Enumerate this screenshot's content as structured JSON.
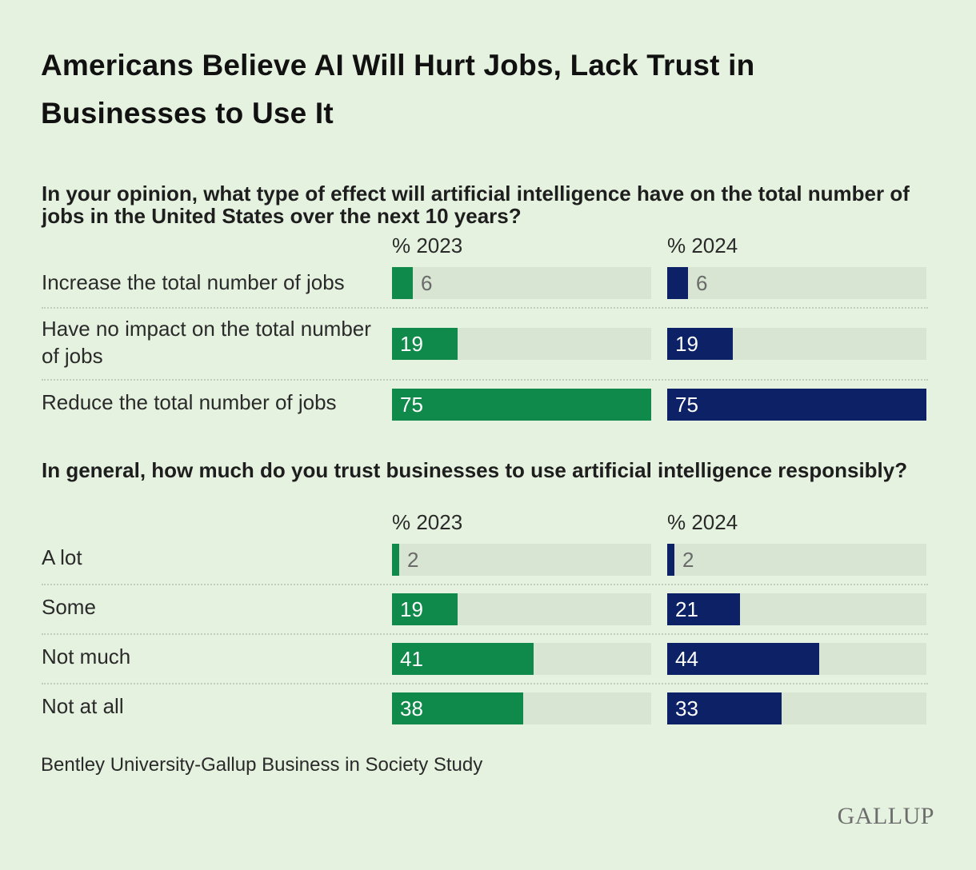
{
  "title": "Americans Believe AI Will Hurt Jobs, Lack Trust in Businesses to Use It",
  "source": "Bentley University-Gallup Business in Society Study",
  "logo_text": "GALLUP",
  "colors": {
    "series_2023": "#0f8a4a",
    "series_2024": "#0c2166",
    "track": "#d7e5d2",
    "background": "#e6f2e0"
  },
  "chart_data": [
    {
      "type": "bar",
      "title": "In your opinion, what type of effect will artificial intelligence have on the total number of jobs in the United States over the next 10 years?",
      "categories": [
        "Increase the total number of jobs",
        "Have no impact on the total number of jobs",
        "Reduce the total number of jobs"
      ],
      "series": [
        {
          "name": "% 2023",
          "values": [
            6,
            19,
            75
          ]
        },
        {
          "name": "% 2024",
          "values": [
            6,
            19,
            75
          ]
        }
      ],
      "xlim": [
        0,
        75
      ]
    },
    {
      "type": "bar",
      "title": "In general, how much do you trust businesses to use artificial intelligence responsibly?",
      "categories": [
        "A lot",
        "Some",
        "Not much",
        "Not at all"
      ],
      "series": [
        {
          "name": "% 2023",
          "values": [
            2,
            19,
            41,
            38
          ]
        },
        {
          "name": "% 2024",
          "values": [
            2,
            21,
            44,
            33
          ]
        }
      ],
      "xlim": [
        0,
        75
      ]
    }
  ]
}
